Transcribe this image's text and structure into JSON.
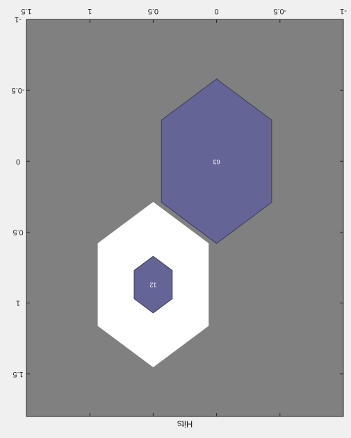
{
  "chart_data": {
    "type": "hexbin",
    "title": "",
    "xlabel": "Hits",
    "ylabel": "",
    "mirrored": true,
    "xlim": [
      -1,
      1.5
    ],
    "ylim": [
      -1,
      1.8
    ],
    "x_ticks": [
      "-1",
      "-0.5",
      "0",
      "0.5",
      "1",
      "1.5"
    ],
    "y_ticks": [
      "-1",
      "-0.5",
      "0",
      "0.5",
      "1",
      "1.5"
    ],
    "hexagons": [
      {
        "label": "63",
        "center": [
          0,
          0
        ],
        "radius": 0.58,
        "color": "#646496",
        "edge": "#3c3c5a"
      },
      {
        "label": "",
        "center": [
          0.5,
          0.87
        ],
        "radius": 0.58,
        "color": "#ffffff",
        "edge": "#ffffff"
      },
      {
        "label": "12",
        "center": [
          0.5,
          0.87
        ],
        "radius": 0.2,
        "color": "#646496",
        "edge": "#3c3c5a"
      }
    ],
    "colors": {
      "figure_bg": "#f0f0f0",
      "axes_bg": "#808080",
      "axes_edge": "#262626",
      "text": "#262626",
      "label_text": "#ffffff"
    }
  }
}
